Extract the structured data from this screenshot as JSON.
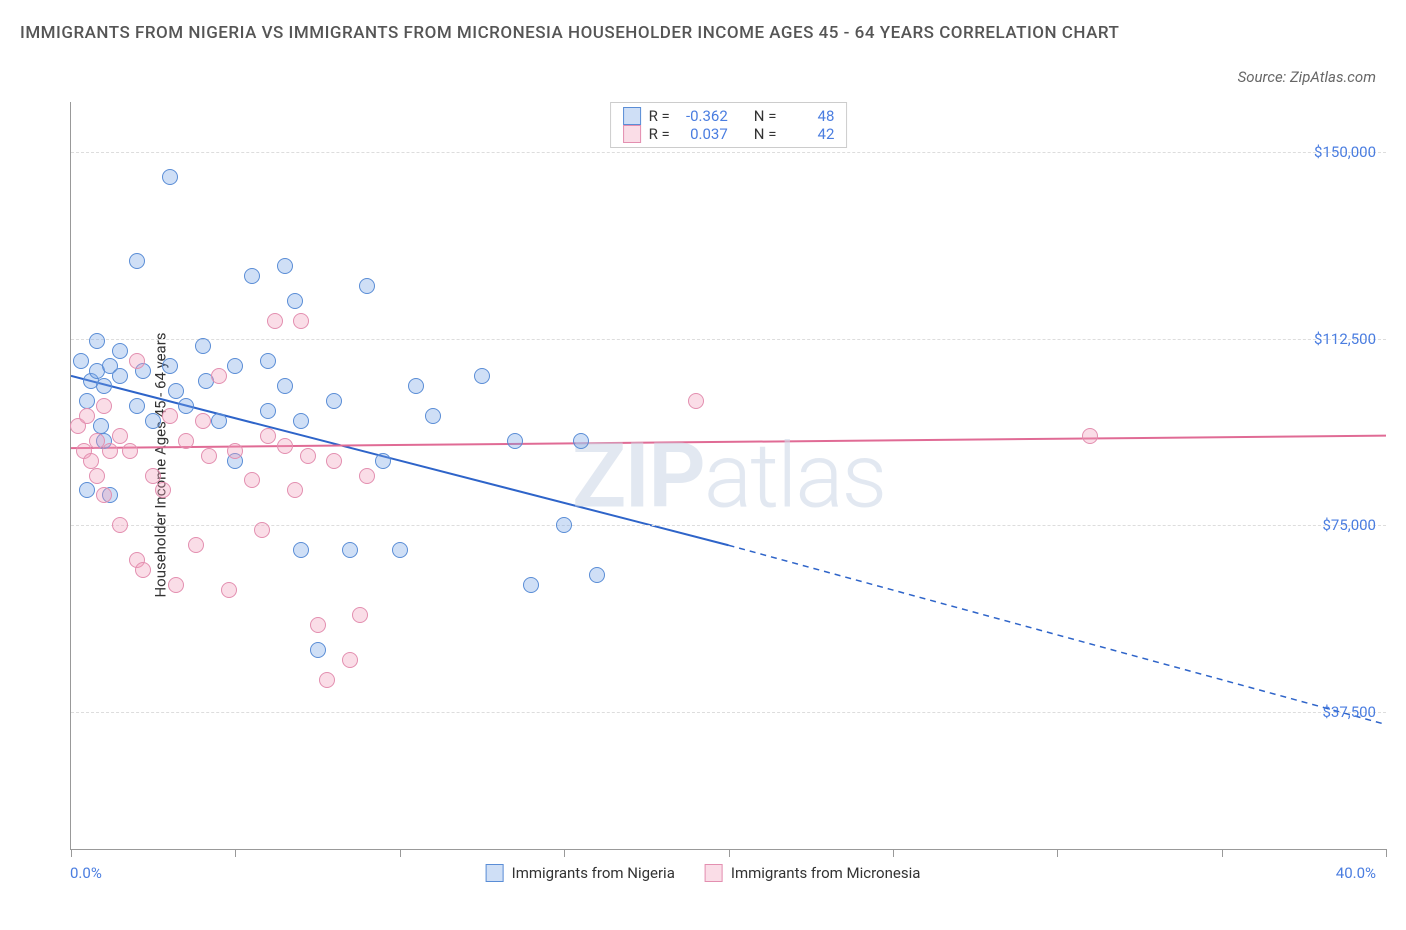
{
  "title": "IMMIGRANTS FROM NIGERIA VS IMMIGRANTS FROM MICRONESIA HOUSEHOLDER INCOME AGES 45 - 64 YEARS CORRELATION CHART",
  "source": "Source: ZipAtlas.com",
  "watermark_a": "ZIP",
  "watermark_b": "atlas",
  "chart": {
    "type": "scatter",
    "ylabel": "Householder Income Ages 45 - 64 years",
    "x_min": 0,
    "x_max": 40,
    "x_label_min": "0.0%",
    "x_label_max": "40.0%",
    "y_min": 10000,
    "y_max": 160000,
    "y_ticks": [
      37500,
      75000,
      112500,
      150000
    ],
    "y_tick_labels": [
      "$37,500",
      "$75,000",
      "$112,500",
      "$150,000"
    ],
    "x_tick_positions": [
      0,
      5,
      10,
      15,
      20,
      25,
      30,
      35,
      40
    ],
    "grid_color_h": "#e0e0e0",
    "background_color": "#ffffff",
    "series": [
      {
        "name": "Immigrants from Nigeria",
        "R": "-0.362",
        "N": "48",
        "color_fill": "rgba(118,162,228,0.35)",
        "color_stroke": "#5a8dd6",
        "marker_size": 16,
        "trend": {
          "x1": 0,
          "y1": 105000,
          "x2": 20,
          "y2": 71000,
          "x2_dash": 40,
          "y2_dash": 35000,
          "color": "#2e64c9",
          "width": 2
        },
        "points": [
          [
            0.3,
            108000
          ],
          [
            0.5,
            100000
          ],
          [
            0.6,
            104000
          ],
          [
            0.8,
            112000
          ],
          [
            0.8,
            106000
          ],
          [
            0.9,
            95000
          ],
          [
            1.0,
            92000
          ],
          [
            1.0,
            103000
          ],
          [
            1.2,
            107000
          ],
          [
            1.2,
            81000
          ],
          [
            1.5,
            110000
          ],
          [
            1.5,
            105000
          ],
          [
            2.0,
            128000
          ],
          [
            2.2,
            106000
          ],
          [
            2.0,
            99000
          ],
          [
            0.5,
            82000
          ],
          [
            3.0,
            145000
          ],
          [
            3.0,
            107000
          ],
          [
            3.2,
            102000
          ],
          [
            3.5,
            99000
          ],
          [
            2.5,
            96000
          ],
          [
            4.0,
            111000
          ],
          [
            4.5,
            96000
          ],
          [
            5.0,
            107000
          ],
          [
            5.0,
            88000
          ],
          [
            5.5,
            125000
          ],
          [
            6.0,
            98000
          ],
          [
            6.0,
            108000
          ],
          [
            6.5,
            127000
          ],
          [
            6.8,
            120000
          ],
          [
            6.5,
            103000
          ],
          [
            7.0,
            70000
          ],
          [
            7.0,
            96000
          ],
          [
            7.5,
            50000
          ],
          [
            8.0,
            100000
          ],
          [
            8.5,
            70000
          ],
          [
            9.0,
            123000
          ],
          [
            9.5,
            88000
          ],
          [
            10.0,
            70000
          ],
          [
            10.5,
            103000
          ],
          [
            11.0,
            97000
          ],
          [
            12.5,
            105000
          ],
          [
            13.5,
            92000
          ],
          [
            14.0,
            63000
          ],
          [
            15.0,
            75000
          ],
          [
            16.0,
            65000
          ],
          [
            15.5,
            92000
          ],
          [
            4.1,
            104000
          ]
        ]
      },
      {
        "name": "Immigrants from Micronesia",
        "R": "0.037",
        "N": "42",
        "color_fill": "rgba(241,159,186,0.35)",
        "color_stroke": "#e38fb0",
        "marker_size": 16,
        "trend": {
          "x1": 0,
          "y1": 90500,
          "x2": 40,
          "y2": 93000,
          "color": "#e06b95",
          "width": 2
        },
        "points": [
          [
            0.2,
            95000
          ],
          [
            0.4,
            90000
          ],
          [
            0.5,
            97000
          ],
          [
            0.6,
            88000
          ],
          [
            0.8,
            92000
          ],
          [
            0.8,
            85000
          ],
          [
            1.0,
            99000
          ],
          [
            1.0,
            81000
          ],
          [
            1.2,
            90000
          ],
          [
            1.5,
            75000
          ],
          [
            1.5,
            93000
          ],
          [
            2.0,
            68000
          ],
          [
            2.0,
            108000
          ],
          [
            2.2,
            66000
          ],
          [
            2.5,
            85000
          ],
          [
            2.8,
            82000
          ],
          [
            3.0,
            97000
          ],
          [
            3.2,
            63000
          ],
          [
            3.5,
            92000
          ],
          [
            3.8,
            71000
          ],
          [
            4.0,
            96000
          ],
          [
            4.2,
            89000
          ],
          [
            4.5,
            105000
          ],
          [
            4.8,
            62000
          ],
          [
            5.0,
            90000
          ],
          [
            5.5,
            84000
          ],
          [
            5.8,
            74000
          ],
          [
            6.0,
            93000
          ],
          [
            6.2,
            116000
          ],
          [
            6.5,
            91000
          ],
          [
            6.8,
            82000
          ],
          [
            7.0,
            116000
          ],
          [
            7.2,
            89000
          ],
          [
            7.5,
            55000
          ],
          [
            8.0,
            88000
          ],
          [
            8.5,
            48000
          ],
          [
            7.8,
            44000
          ],
          [
            9.0,
            85000
          ],
          [
            8.8,
            57000
          ],
          [
            19.0,
            100000
          ],
          [
            31.0,
            93000
          ],
          [
            1.8,
            90000
          ]
        ]
      }
    ],
    "legend_labels": {
      "R": "R =",
      "N": "N ="
    },
    "colors": {
      "axis_label": "#4a7de0",
      "text": "#333333"
    }
  }
}
